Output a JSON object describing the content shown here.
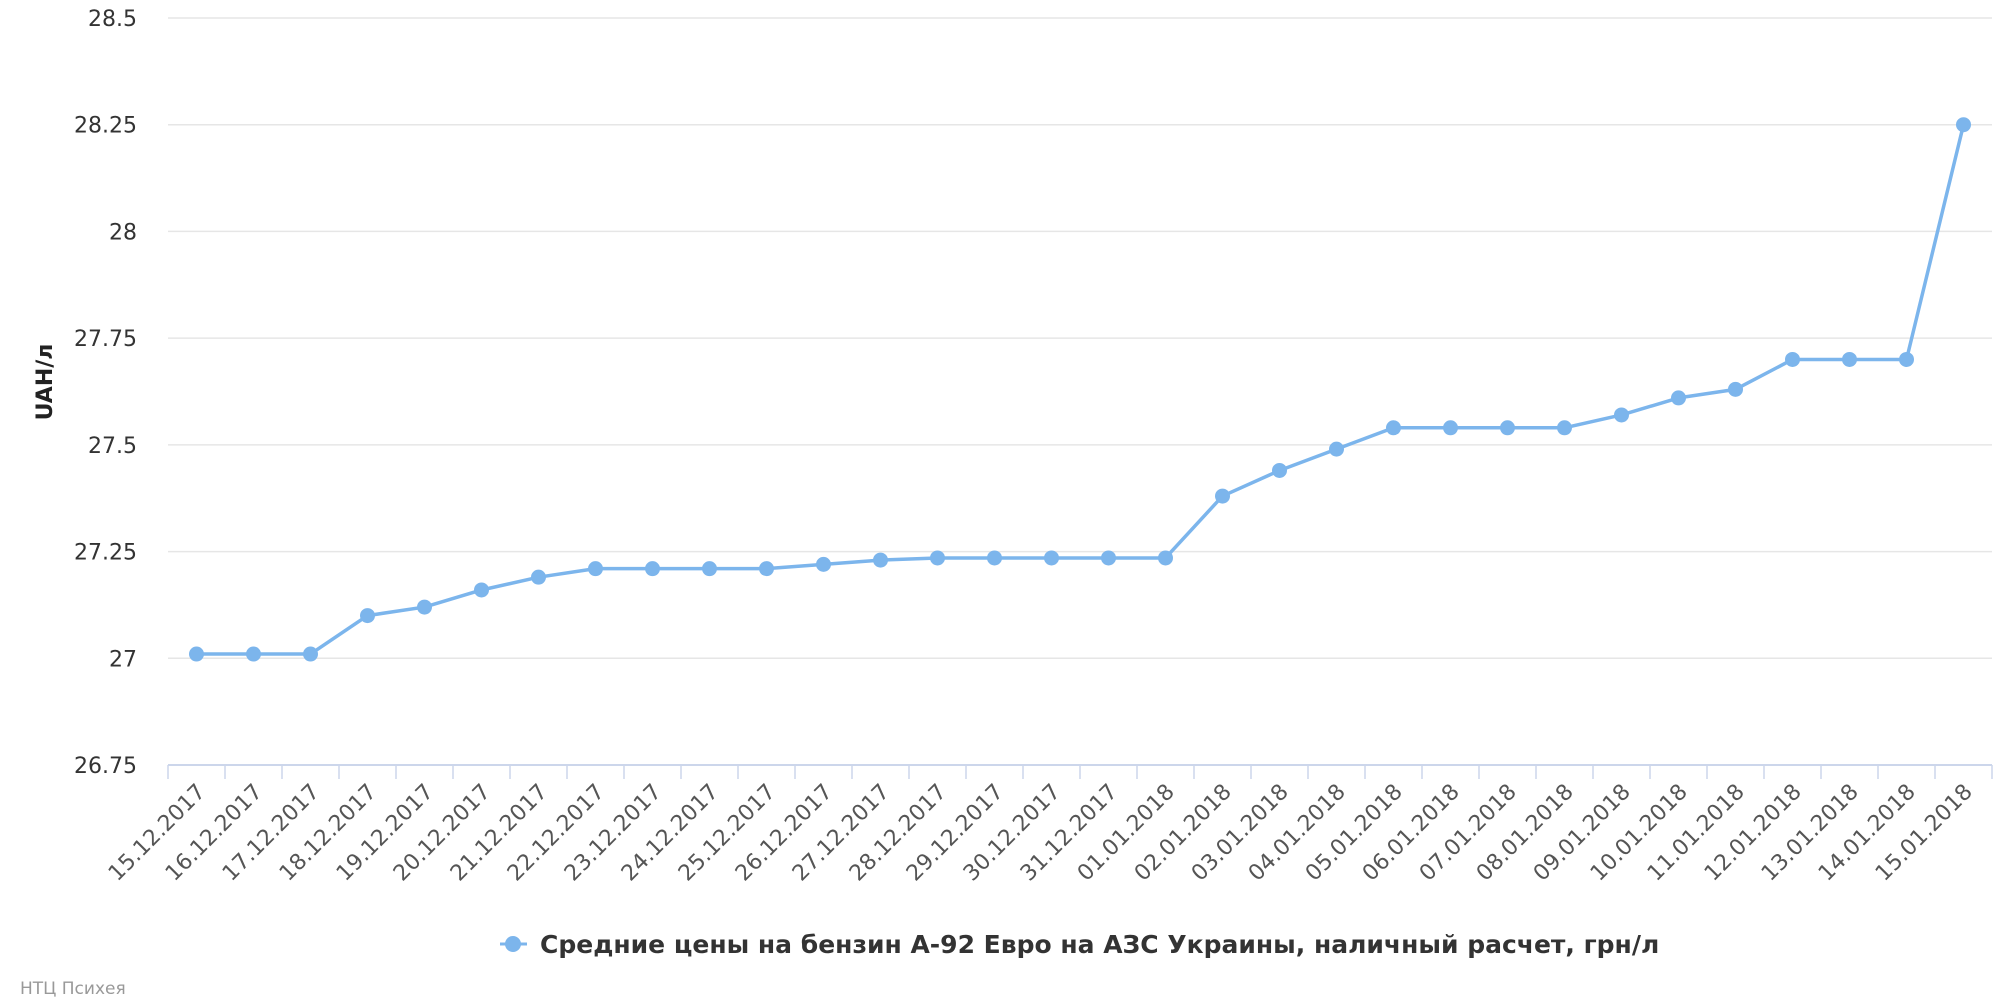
{
  "chart_data": {
    "type": "line",
    "title": "",
    "xlabel": "",
    "ylabel": "UAH/л",
    "ylim": [
      26.75,
      28.5
    ],
    "yticks": [
      "26.75",
      "27",
      "27.25",
      "27.5",
      "27.75",
      "28",
      "28.25",
      "28.5"
    ],
    "grid": true,
    "legend_position": "bottom-center",
    "categories": [
      "15.12.2017",
      "16.12.2017",
      "17.12.2017",
      "18.12.2017",
      "19.12.2017",
      "20.12.2017",
      "21.12.2017",
      "22.12.2017",
      "23.12.2017",
      "24.12.2017",
      "25.12.2017",
      "26.12.2017",
      "27.12.2017",
      "28.12.2017",
      "29.12.2017",
      "30.12.2017",
      "31.12.2017",
      "01.01.2018",
      "02.01.2018",
      "03.01.2018",
      "04.01.2018",
      "05.01.2018",
      "06.01.2018",
      "07.01.2018",
      "08.01.2018",
      "09.01.2018",
      "10.01.2018",
      "11.01.2018",
      "12.01.2018",
      "13.01.2018",
      "14.01.2018",
      "15.01.2018"
    ],
    "series": [
      {
        "name": "Средние цены на бензин А-92 Евро на АЗС Украины, наличный расчет, грн/л",
        "color": "#7cb5ec",
        "values": [
          27.01,
          27.01,
          27.01,
          27.1,
          27.12,
          27.16,
          27.19,
          27.21,
          27.21,
          27.21,
          27.21,
          27.22,
          27.23,
          27.235,
          27.235,
          27.235,
          27.235,
          27.235,
          27.38,
          27.44,
          27.49,
          27.54,
          27.54,
          27.54,
          27.54,
          27.57,
          27.61,
          27.63,
          27.7,
          27.7,
          27.7,
          28.25
        ]
      }
    ]
  },
  "credits": "НТЦ Психея"
}
